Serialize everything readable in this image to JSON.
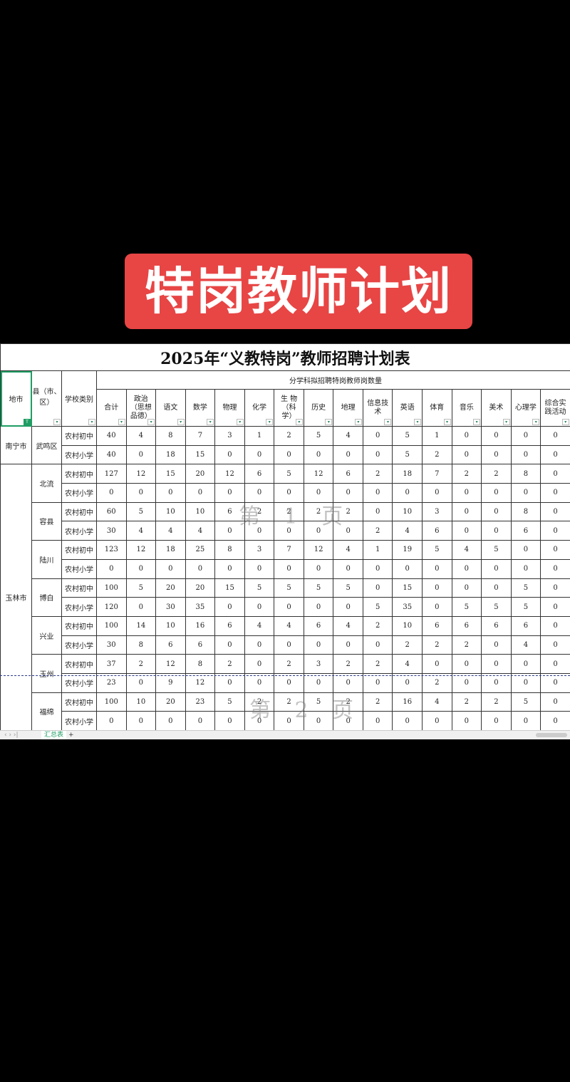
{
  "banner": {
    "text": "特岗教师计划",
    "color": "#e84545"
  },
  "sheet": {
    "title": "2025年“义教特岗”教师招聘计划表",
    "headers": {
      "city": "地市",
      "county": "县（市、区）",
      "school_type": "学校类别",
      "group": "分学科拟招聘特岗教师岗数量"
    },
    "subjects": [
      "合计",
      "政治（思想品德）",
      "语文",
      "数学",
      "物理",
      "化学",
      "生 物（科学）",
      "历史",
      "地理",
      "信息技术",
      "英语",
      "体育",
      "音乐",
      "美术",
      "心理学",
      "综合实践活动"
    ],
    "cities": [
      {
        "name": "南宁市",
        "counties": [
          {
            "name": "武鸣区",
            "rows": [
              {
                "type": "农村初中",
                "values": [
                  40,
                  4,
                  8,
                  7,
                  3,
                  1,
                  2,
                  5,
                  4,
                  0,
                  5,
                  1,
                  0,
                  0,
                  0,
                  0
                ]
              },
              {
                "type": "农村小学",
                "values": [
                  40,
                  0,
                  18,
                  15,
                  0,
                  0,
                  0,
                  0,
                  0,
                  0,
                  5,
                  2,
                  0,
                  0,
                  0,
                  0
                ]
              }
            ]
          }
        ]
      },
      {
        "name": "玉林市",
        "counties": [
          {
            "name": "北流",
            "rows": [
              {
                "type": "农村初中",
                "values": [
                  127,
                  12,
                  15,
                  20,
                  12,
                  6,
                  5,
                  12,
                  6,
                  2,
                  18,
                  7,
                  2,
                  2,
                  8,
                  0
                ]
              },
              {
                "type": "农村小学",
                "values": [
                  0,
                  0,
                  0,
                  0,
                  0,
                  0,
                  0,
                  0,
                  0,
                  0,
                  0,
                  0,
                  0,
                  0,
                  0,
                  0
                ]
              }
            ]
          },
          {
            "name": "容县",
            "rows": [
              {
                "type": "农村初中",
                "values": [
                  60,
                  5,
                  10,
                  10,
                  6,
                  2,
                  2,
                  2,
                  2,
                  0,
                  10,
                  3,
                  0,
                  0,
                  8,
                  0
                ]
              },
              {
                "type": "农村小学",
                "values": [
                  30,
                  4,
                  4,
                  4,
                  0,
                  0,
                  0,
                  0,
                  0,
                  2,
                  4,
                  6,
                  0,
                  0,
                  6,
                  0
                ]
              }
            ]
          },
          {
            "name": "陆川",
            "rows": [
              {
                "type": "农村初中",
                "values": [
                  123,
                  12,
                  18,
                  25,
                  8,
                  3,
                  7,
                  12,
                  4,
                  1,
                  19,
                  5,
                  4,
                  5,
                  0,
                  0
                ]
              },
              {
                "type": "农村小学",
                "values": [
                  0,
                  0,
                  0,
                  0,
                  0,
                  0,
                  0,
                  0,
                  0,
                  0,
                  0,
                  0,
                  0,
                  0,
                  0,
                  0
                ]
              }
            ]
          },
          {
            "name": "博白",
            "rows": [
              {
                "type": "农村初中",
                "values": [
                  100,
                  5,
                  20,
                  20,
                  15,
                  5,
                  5,
                  5,
                  5,
                  0,
                  15,
                  0,
                  0,
                  0,
                  5,
                  0
                ]
              },
              {
                "type": "农村小学",
                "values": [
                  120,
                  0,
                  30,
                  35,
                  0,
                  0,
                  0,
                  0,
                  0,
                  5,
                  35,
                  0,
                  5,
                  5,
                  5,
                  0
                ]
              }
            ]
          },
          {
            "name": "兴业",
            "rows": [
              {
                "type": "农村初中",
                "values": [
                  100,
                  14,
                  10,
                  16,
                  6,
                  4,
                  4,
                  6,
                  4,
                  2,
                  10,
                  6,
                  6,
                  6,
                  6,
                  0
                ]
              },
              {
                "type": "农村小学",
                "values": [
                  30,
                  8,
                  6,
                  6,
                  0,
                  0,
                  0,
                  0,
                  0,
                  0,
                  2,
                  2,
                  2,
                  0,
                  4,
                  0
                ]
              }
            ]
          },
          {
            "name": "玉州",
            "rows": [
              {
                "type": "农村初中",
                "values": [
                  37,
                  2,
                  12,
                  8,
                  2,
                  0,
                  2,
                  3,
                  2,
                  2,
                  4,
                  0,
                  0,
                  0,
                  0,
                  0
                ]
              },
              {
                "type": "农村小学",
                "values": [
                  23,
                  0,
                  9,
                  12,
                  0,
                  0,
                  0,
                  0,
                  0,
                  0,
                  0,
                  2,
                  0,
                  0,
                  0,
                  0
                ]
              }
            ]
          },
          {
            "name": "福绵",
            "rows": [
              {
                "type": "农村初中",
                "values": [
                  100,
                  10,
                  20,
                  23,
                  5,
                  2,
                  2,
                  5,
                  2,
                  2,
                  16,
                  4,
                  2,
                  2,
                  5,
                  0
                ]
              },
              {
                "type": "农村小学",
                "values": [
                  0,
                  0,
                  0,
                  0,
                  0,
                  0,
                  0,
                  0,
                  0,
                  0,
                  0,
                  0,
                  0,
                  0,
                  0,
                  0
                ]
              }
            ]
          }
        ]
      }
    ],
    "watermarks": [
      "第 1 页",
      "第 2 页"
    ],
    "tabs": {
      "nav": "‹ › ›|",
      "active": "汇总表",
      "add": "+"
    },
    "accent": "#1f9d63"
  }
}
